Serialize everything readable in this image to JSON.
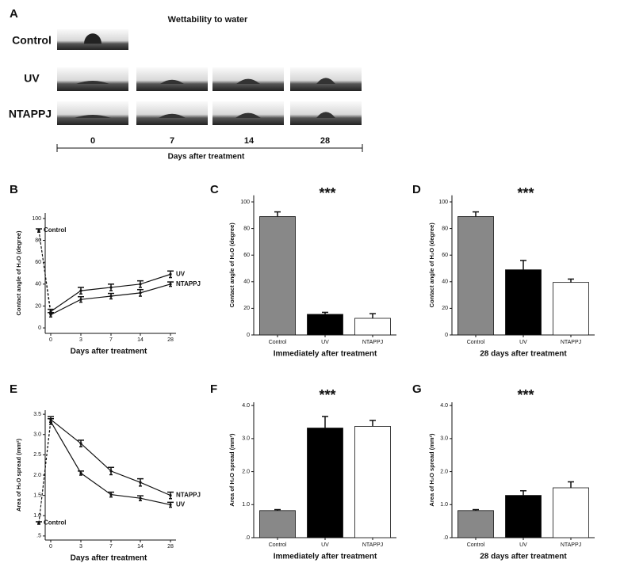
{
  "panel_a": {
    "panel": "A",
    "title": "Wettability to water",
    "rows": [
      "Control",
      "UV",
      "NTAPPJ"
    ],
    "days": [
      "0",
      "7",
      "14",
      "28"
    ],
    "xlabel": "Days after treatment"
  },
  "chart_data": [
    {
      "type": "line",
      "panel": "B",
      "categories": [
        "0",
        "3",
        "7",
        "14",
        "28"
      ],
      "control": {
        "name": "Control",
        "value": 89,
        "error": 1.5
      },
      "series": [
        {
          "name": "UV",
          "color": "#111111",
          "values": [
            15,
            34,
            37,
            40,
            49
          ],
          "errors": [
            2,
            3,
            3,
            3,
            3
          ]
        },
        {
          "name": "NTAPPJ",
          "color": "#111111",
          "values": [
            12,
            26,
            29,
            32,
            40
          ],
          "errors": [
            2,
            2.5,
            2.5,
            3,
            2
          ]
        }
      ],
      "ylim": [
        -5,
        105
      ],
      "yticks": [
        0,
        20,
        40,
        60,
        80,
        100
      ],
      "xlabel": "Days after treatment",
      "ylabel": "Contact angle of H₂O (degree)"
    },
    {
      "type": "bar",
      "panel": "C",
      "categories": [
        "Control",
        "UV",
        "NTAPPJ"
      ],
      "values": [
        89,
        15.5,
        12.5
      ],
      "errors": [
        3.5,
        1.5,
        3.5
      ],
      "colors": [
        "#888888",
        "#000000",
        "#ffffff"
      ],
      "ylim": [
        0,
        105
      ],
      "yticks": [
        0,
        20,
        40,
        60,
        80,
        100
      ],
      "annotation": "***",
      "xlabel": "Immediately after treatment",
      "ylabel": "Contact angle of H₂O (degree)"
    },
    {
      "type": "bar",
      "panel": "D",
      "categories": [
        "Control",
        "UV",
        "NTAPPJ"
      ],
      "values": [
        89,
        49,
        39.5
      ],
      "errors": [
        3.5,
        7,
        2.5
      ],
      "colors": [
        "#888888",
        "#000000",
        "#ffffff"
      ],
      "ylim": [
        0,
        105
      ],
      "yticks": [
        0,
        20,
        40,
        60,
        80,
        100
      ],
      "annotation": "***",
      "xlabel": "28 days after treatment",
      "ylabel": "Contact angle of H₂O (degree)"
    },
    {
      "type": "line",
      "panel": "E",
      "categories": [
        "0",
        "3",
        "7",
        "14",
        "28"
      ],
      "control": {
        "name": "Control",
        "value": 0.82,
        "error": 0.03
      },
      "series": [
        {
          "name": "NTAPPJ",
          "color": "#111111",
          "values": [
            3.37,
            2.78,
            2.1,
            1.82,
            1.5
          ],
          "errors": [
            0.07,
            0.08,
            0.09,
            0.09,
            0.08
          ]
        },
        {
          "name": "UV",
          "color": "#111111",
          "values": [
            3.32,
            2.05,
            1.52,
            1.43,
            1.27
          ],
          "errors": [
            0.07,
            0.05,
            0.06,
            0.06,
            0.06
          ]
        }
      ],
      "ylim": [
        0.4,
        3.6
      ],
      "yticks": [
        {
          "value": 0.5,
          "label": ".5"
        },
        {
          "value": 1,
          "label": "1.0"
        },
        {
          "value": 1.5,
          "label": "1.5"
        },
        {
          "value": 2,
          "label": "2.0"
        },
        {
          "value": 2.5,
          "label": "2.5"
        },
        {
          "value": 3,
          "label": "3.0"
        },
        {
          "value": 3.5,
          "label": "3.5"
        }
      ],
      "xlabel": "Days after treatment",
      "ylabel": "Area of H₂O spread (mm²)"
    },
    {
      "type": "bar",
      "panel": "F",
      "categories": [
        "Control",
        "UV",
        "NTAPPJ"
      ],
      "values": [
        0.82,
        3.32,
        3.37
      ],
      "errors": [
        0.03,
        0.35,
        0.18
      ],
      "colors": [
        "#888888",
        "#000000",
        "#ffffff"
      ],
      "ylim": [
        0,
        4.1
      ],
      "yticks": [
        {
          "value": 0,
          "label": ".0"
        },
        {
          "value": 1,
          "label": "1.0"
        },
        {
          "value": 2,
          "label": "2.0"
        },
        {
          "value": 3,
          "label": "3.0"
        },
        {
          "value": 4,
          "label": "4.0"
        }
      ],
      "annotation": "***",
      "xlabel": "Immediately after treatment",
      "ylabel": "Area of H₂O spread (mm²)"
    },
    {
      "type": "bar",
      "panel": "G",
      "categories": [
        "Control",
        "UV",
        "NTAPPJ"
      ],
      "values": [
        0.82,
        1.28,
        1.51
      ],
      "errors": [
        0.03,
        0.14,
        0.18
      ],
      "colors": [
        "#888888",
        "#000000",
        "#ffffff"
      ],
      "ylim": [
        0,
        4.1
      ],
      "yticks": [
        {
          "value": 0,
          "label": ".0"
        },
        {
          "value": 1,
          "label": "1.0"
        },
        {
          "value": 2,
          "label": "2.0"
        },
        {
          "value": 3,
          "label": "3.0"
        },
        {
          "value": 4,
          "label": "4.0"
        }
      ],
      "annotation": "***",
      "xlabel": "28 days after treatment",
      "ylabel": "Area of H₂O spread (mm²)"
    }
  ]
}
